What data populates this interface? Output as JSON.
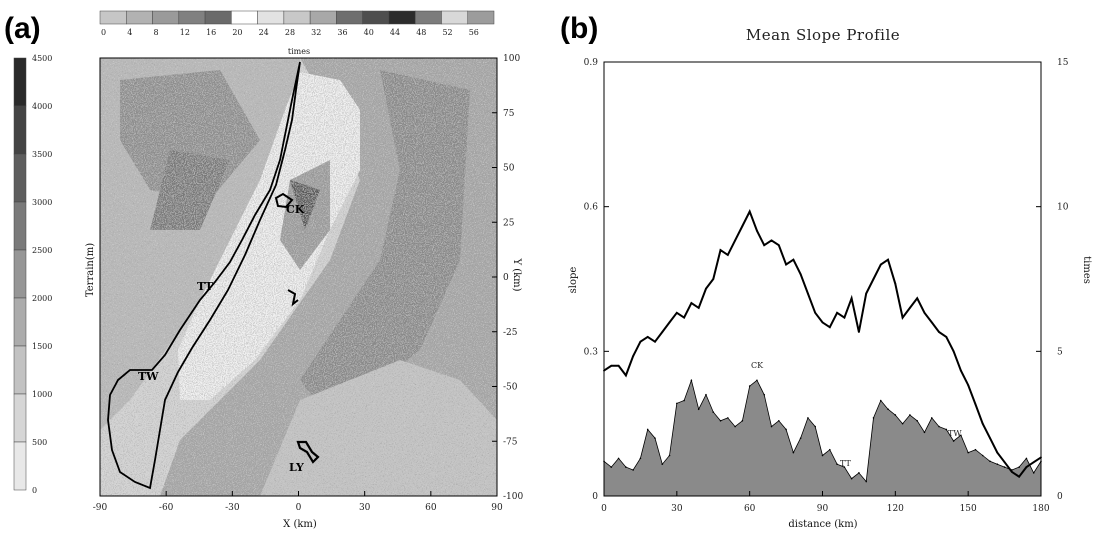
{
  "panel_a": {
    "letter": "(a)",
    "colorbar_top": {
      "label": "times",
      "ticks": [
        "0",
        "4",
        "8",
        "12",
        "16",
        "20",
        "24",
        "28",
        "32",
        "36",
        "40",
        "44",
        "48",
        "52",
        "56"
      ],
      "colors": [
        "#c6c6c6",
        "#b2b2b2",
        "#9a9a9a",
        "#808080",
        "#6a6a6a",
        "#ffffff",
        "#e2e2e2",
        "#c8c8c8",
        "#a8a8a8",
        "#6e6e6e",
        "#4e4e4e",
        "#2c2c2c",
        "#7c7c7c",
        "#d8d8d8",
        "#9c9c9c"
      ]
    },
    "colorbar_left": {
      "label": "Terrain(m)",
      "ticks": [
        "4500",
        "4000",
        "3500",
        "3000",
        "2500",
        "2000",
        "1500",
        "1000",
        "500",
        "0"
      ],
      "colors": [
        "#2a2a2a",
        "#444444",
        "#5e5e5e",
        "#7a7a7a",
        "#969696",
        "#acacac",
        "#c2c2c2",
        "#d6d6d6",
        "#e8e8e8"
      ]
    },
    "x_axis": {
      "label": "X (km)",
      "ticks": [
        "-90",
        "-60",
        "-30",
        "0",
        "30",
        "60",
        "90"
      ]
    },
    "y_axis": {
      "label": "Y (km)",
      "ticks": [
        "100",
        "75",
        "50",
        "25",
        "0",
        "-25",
        "-50",
        "-75",
        "-100"
      ]
    },
    "places": [
      "CK",
      "TT",
      "TW",
      "LY"
    ]
  },
  "panel_b": {
    "letter": "(b)",
    "title": "Mean Slope Profile",
    "x_label": "distance (km)",
    "y_left_label": "slope",
    "y_right_label": "times",
    "annotations": [
      "CK",
      "TT",
      "TW"
    ]
  },
  "chart_data": [
    {
      "type": "heatmap",
      "title": "",
      "xlabel": "X (km)",
      "ylabel": "Y (km)",
      "xlim": [
        -90,
        90
      ],
      "ylim": [
        -100,
        100
      ],
      "colorbar_label": "times",
      "colorbar_ticks": [
        0,
        4,
        8,
        12,
        16,
        20,
        24,
        28,
        32,
        36,
        40,
        44,
        48,
        52,
        56
      ],
      "terrain_colorbar_label": "Terrain(m)",
      "terrain_colorbar_ticks": [
        0,
        500,
        1000,
        1500,
        2000,
        2500,
        3000,
        3500,
        4000,
        4500
      ],
      "annotations": [
        "CK",
        "TT",
        "TW",
        "LY"
      ]
    },
    {
      "type": "line",
      "title": "Mean Slope Profile",
      "xlabel": "distance (km)",
      "ylabel": "slope",
      "y2label": "times",
      "xlim": [
        0,
        180
      ],
      "ylim": [
        0,
        0.9
      ],
      "y2lim": [
        0,
        15
      ],
      "x_ticks": [
        0,
        30,
        60,
        90,
        120,
        150,
        180
      ],
      "y_ticks": [
        0,
        0.3,
        0.6,
        0.9
      ],
      "y2_ticks": [
        0,
        5,
        10,
        15
      ],
      "series": [
        {
          "name": "slope",
          "axis": "left",
          "style": "line",
          "x": [
            0,
            3,
            6,
            9,
            12,
            15,
            18,
            21,
            24,
            27,
            30,
            33,
            36,
            39,
            42,
            45,
            48,
            51,
            54,
            57,
            60,
            63,
            66,
            69,
            72,
            75,
            78,
            81,
            84,
            87,
            90,
            93,
            96,
            99,
            102,
            105,
            108,
            111,
            114,
            117,
            120,
            123,
            126,
            129,
            132,
            135,
            138,
            141,
            144,
            147,
            150,
            153,
            156,
            159,
            162,
            165,
            168,
            171,
            174,
            177,
            180
          ],
          "values": [
            0.26,
            0.27,
            0.27,
            0.25,
            0.29,
            0.32,
            0.33,
            0.32,
            0.34,
            0.36,
            0.38,
            0.37,
            0.4,
            0.39,
            0.43,
            0.45,
            0.51,
            0.5,
            0.53,
            0.56,
            0.59,
            0.55,
            0.52,
            0.53,
            0.52,
            0.48,
            0.49,
            0.46,
            0.42,
            0.38,
            0.36,
            0.35,
            0.38,
            0.37,
            0.41,
            0.34,
            0.42,
            0.45,
            0.48,
            0.49,
            0.44,
            0.37,
            0.39,
            0.41,
            0.38,
            0.36,
            0.34,
            0.33,
            0.3,
            0.26,
            0.23,
            0.19,
            0.15,
            0.12,
            0.09,
            0.07,
            0.05,
            0.04,
            0.06,
            0.07,
            0.08
          ]
        },
        {
          "name": "times",
          "axis": "right",
          "style": "area",
          "x": [
            0,
            3,
            6,
            9,
            12,
            15,
            18,
            21,
            24,
            27,
            30,
            33,
            36,
            39,
            42,
            45,
            48,
            51,
            54,
            57,
            60,
            63,
            66,
            69,
            72,
            75,
            78,
            81,
            84,
            87,
            90,
            93,
            96,
            99,
            102,
            105,
            108,
            111,
            114,
            117,
            120,
            123,
            126,
            129,
            132,
            135,
            138,
            141,
            144,
            147,
            150,
            153,
            156,
            159,
            162,
            165,
            168,
            171,
            174,
            177,
            180
          ],
          "values": [
            1.2,
            1.0,
            1.3,
            1.0,
            0.9,
            1.3,
            2.3,
            2.0,
            1.1,
            1.4,
            3.2,
            3.3,
            4.0,
            3.0,
            3.5,
            2.9,
            2.6,
            2.7,
            2.4,
            2.6,
            3.8,
            4.0,
            3.5,
            2.4,
            2.6,
            2.3,
            1.5,
            2.0,
            2.7,
            2.4,
            1.4,
            1.6,
            1.1,
            1.0,
            0.6,
            0.8,
            0.5,
            2.7,
            3.3,
            3.0,
            2.8,
            2.5,
            2.8,
            2.6,
            2.2,
            2.7,
            2.4,
            2.3,
            1.9,
            2.1,
            1.5,
            1.6,
            1.4,
            1.2,
            1.1,
            1.0,
            0.9,
            1.0,
            1.3,
            0.8,
            1.2
          ]
        }
      ]
    }
  ]
}
